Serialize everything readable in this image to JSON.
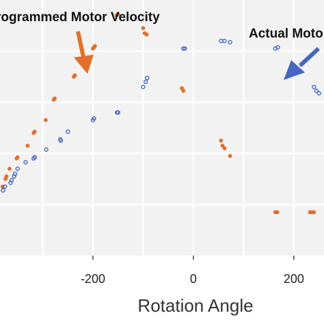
{
  "chart_data": {
    "type": "scatter",
    "title": "",
    "xlabel": "Rotation Angle",
    "ylabel": "",
    "xlim": [
      -385,
      260
    ],
    "ylim": [
      0,
      1
    ],
    "x_ticks": [
      -200,
      0,
      200
    ],
    "x_tick_labels": [
      "-200",
      "0",
      "200"
    ],
    "grid": true,
    "background": "#f2f2f2",
    "annotations": [
      {
        "text": "rogrammed Motor Velocity",
        "color": "#111111",
        "arrow_color": "#e2702a",
        "arrow_direction": "down"
      },
      {
        "text": "Actual Moto",
        "color": "#111111",
        "arrow_color": "#4468c0",
        "arrow_direction": "down-left"
      }
    ],
    "series": [
      {
        "name": "Programmed Motor Velocity",
        "marker": "filled",
        "color": "#e2702a",
        "points": [
          [
            -153,
            0.94
          ],
          [
            -150,
            0.945
          ],
          [
            -200,
            0.81
          ],
          [
            -198,
            0.815
          ],
          [
            -196,
            0.82
          ],
          [
            -100,
            0.89
          ],
          [
            -97,
            0.87
          ],
          [
            -93,
            0.865
          ],
          [
            -238,
            0.7
          ],
          [
            -236,
            0.705
          ],
          [
            -278,
            0.61
          ],
          [
            -276,
            0.615
          ],
          [
            -294,
            0.53
          ],
          [
            -318,
            0.48
          ],
          [
            -316,
            0.485
          ],
          [
            -330,
            0.43
          ],
          [
            -352,
            0.38
          ],
          [
            -350,
            0.385
          ],
          [
            -366,
            0.34
          ],
          [
            -374,
            0.3
          ],
          [
            -372,
            0.31
          ],
          [
            -380,
            0.27
          ],
          [
            -23,
            0.655
          ],
          [
            -20,
            0.645
          ],
          [
            55,
            0.45
          ],
          [
            58,
            0.43
          ],
          [
            62,
            0.42
          ],
          [
            73,
            0.39
          ],
          [
            163,
            0.17
          ],
          [
            167,
            0.17
          ],
          [
            232,
            0.17
          ],
          [
            236,
            0.17
          ],
          [
            240,
            0.17
          ]
        ]
      },
      {
        "name": "Actual Motor Velocity",
        "marker": "hollow",
        "color": "#4468c0",
        "points": [
          [
            -20,
            0.81
          ],
          [
            -17,
            0.81
          ],
          [
            55,
            0.84
          ],
          [
            62,
            0.84
          ],
          [
            73,
            0.835
          ],
          [
            163,
            0.81
          ],
          [
            168,
            0.815
          ],
          [
            -92,
            0.695
          ],
          [
            -95,
            0.68
          ],
          [
            -100,
            0.66
          ],
          [
            -152,
            0.56
          ],
          [
            -150,
            0.56
          ],
          [
            -198,
            0.537
          ],
          [
            -200,
            0.53
          ],
          [
            -250,
            0.485
          ],
          [
            -265,
            0.455
          ],
          [
            -264,
            0.45
          ],
          [
            -293,
            0.415
          ],
          [
            -316,
            0.385
          ],
          [
            -318,
            0.38
          ],
          [
            -334,
            0.365
          ],
          [
            -350,
            0.34
          ],
          [
            -355,
            0.32
          ],
          [
            -357,
            0.31
          ],
          [
            -362,
            0.295
          ],
          [
            -364,
            0.285
          ],
          [
            -375,
            0.27
          ],
          [
            -379,
            0.255
          ],
          [
            240,
            0.66
          ],
          [
            245,
            0.645
          ],
          [
            250,
            0.635
          ]
        ]
      }
    ]
  }
}
